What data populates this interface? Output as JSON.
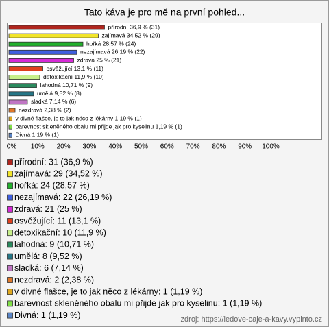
{
  "chart_data": {
    "type": "bar",
    "orientation": "horizontal",
    "title": "Tato káva je pro mě na první pohled...",
    "categories": [
      "přírodní",
      "zajímavá",
      "hořká",
      "nezajímavá",
      "zdravá",
      "osvěžující",
      "detoxikační",
      "lahodná",
      "umělá",
      "sladká",
      "nezdravá",
      "v divné flašce, je to jak něco z lékárny",
      "barevnost skleněného obalu mi přijde jak pro kyselinu",
      "Divná"
    ],
    "values": [
      36.9,
      34.52,
      28.57,
      26.19,
      25,
      13.1,
      11.9,
      10.71,
      9.52,
      7.14,
      2.38,
      1.19,
      1.19,
      1.19
    ],
    "value_labels": [
      "přírodní 36,9 % (31)",
      "zajímavá 34,52 % (29)",
      "hořká 28,57 % (24)",
      "nezajímavá 26,19 % (22)",
      "zdravá 25 % (21)",
      "osvěžující 13,1 % (11)",
      "detoxikační 11,9 % (10)",
      "lahodná 10,71 % (9)",
      "umělá 9,52 % (8)",
      "sladká 7,14 % (6)",
      "nezdravá 2,38 % (2)",
      "v divné flašce, je to jak něco z lékárny 1,19 % (1)",
      "barevnost skleněného obalu mi přijde jak pro kyselinu 1,19 % (1)",
      "Divná 1,19 % (1)"
    ],
    "legend_labels": [
      "přírodní: 31 (36,9 %)",
      "zajímavá: 29 (34,52 %)",
      "hořká: 24 (28,57 %)",
      "nezajímavá: 22 (26,19 %)",
      "zdravá: 21 (25 %)",
      "osvěžující: 11 (13,1 %)",
      "detoxikační: 10 (11,9 %)",
      "lahodná: 9 (10,71 %)",
      "umělá: 8 (9,52 %)",
      "sladká: 6 (7,14 %)",
      "nezdravá: 2 (2,38 %)",
      "v divné flašce, je to jak něco z lékárny: 1 (1,19 %)",
      "barevnost skleněného obalu mi přijde jak pro kyselinu: 1 (1,19 %)",
      "Divná: 1 (1,19 %)"
    ],
    "colors": [
      "#b0261e",
      "#f2e52a",
      "#22b02c",
      "#3f5fe0",
      "#d62ad6",
      "#e0401e",
      "#c8f08a",
      "#2a8a5e",
      "#257686",
      "#c076c4",
      "#e0782a",
      "#e0a81e",
      "#82e048",
      "#5a86c8"
    ],
    "xlim": [
      0,
      100
    ],
    "xticks": [
      {
        "value": 0,
        "label": "0%"
      },
      {
        "value": 10,
        "label": "10%"
      },
      {
        "value": 20,
        "label": "20%"
      },
      {
        "value": 30,
        "label": "30%"
      },
      {
        "value": 40,
        "label": "40%"
      },
      {
        "value": 50,
        "label": "50%"
      },
      {
        "value": 60,
        "label": "60%"
      },
      {
        "value": 70,
        "label": "70%"
      },
      {
        "value": 80,
        "label": "80%"
      },
      {
        "value": 90,
        "label": "90%"
      },
      {
        "value": 100,
        "label": "100%"
      }
    ],
    "source": "zdroj: https://ledove-caje-a-kavy.vyplnto.cz"
  }
}
